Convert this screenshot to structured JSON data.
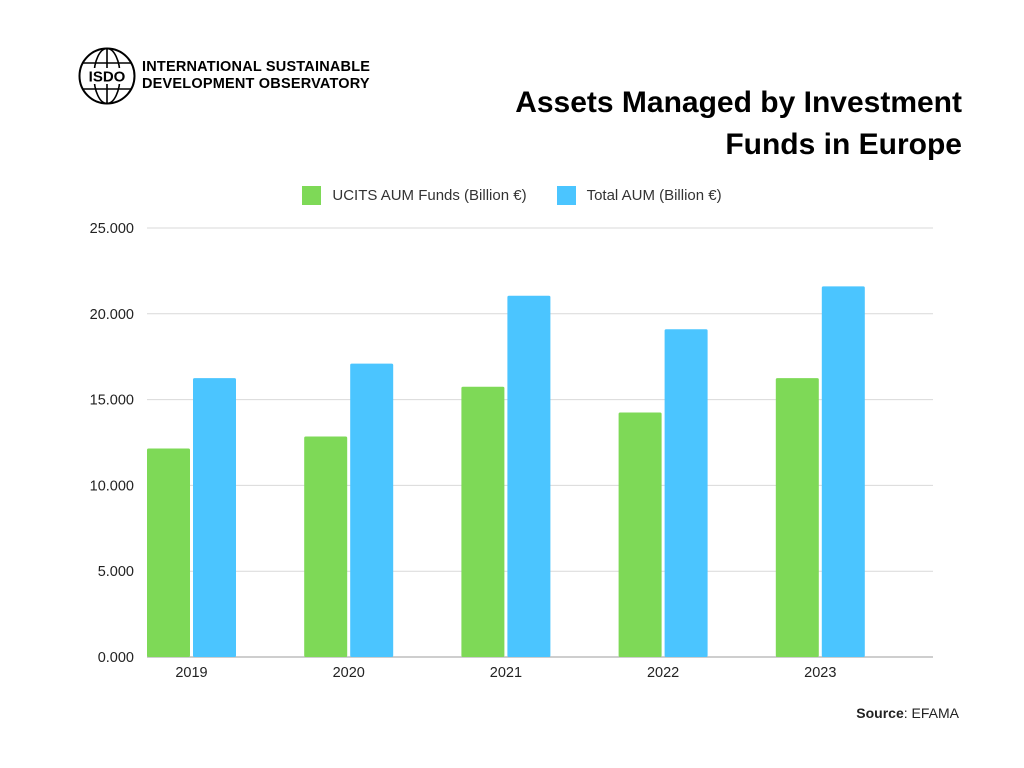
{
  "header": {
    "org_line1": "INTERNATIONAL SUSTAINABLE",
    "org_line2": "DEVELOPMENT OBSERVATORY",
    "logo_text": "ISDO",
    "title_line1": "Assets Managed by Investment",
    "title_line2": "Funds in Europe"
  },
  "footer": {
    "source_label": "Source",
    "source_value": ": EFAMA"
  },
  "colors": {
    "ucits": "#7ed957",
    "total": "#4bc5ff",
    "grid": "#d9d9d9",
    "axis": "#b0b0b0",
    "text": "#222222"
  },
  "chart_data": {
    "type": "bar",
    "categories": [
      "2019",
      "2020",
      "2021",
      "2022",
      "2023"
    ],
    "series": [
      {
        "name": "UCITS AUM Funds (Billion €)",
        "values": [
          12150,
          12850,
          15750,
          14250,
          16250
        ]
      },
      {
        "name": "Total AUM (Billion €)",
        "values": [
          16250,
          17100,
          21050,
          19100,
          21600
        ]
      }
    ],
    "ylim": [
      0,
      25000
    ],
    "yticks": [
      0,
      5000,
      10000,
      15000,
      20000,
      25000
    ],
    "ytick_labels": [
      "0.000",
      "5.000",
      "10.000",
      "15.000",
      "20.000",
      "25.000"
    ],
    "grid": true,
    "legend_position": "top-center",
    "title": "Assets Managed by Investment Funds in Europe",
    "xlabel": "",
    "ylabel": ""
  }
}
